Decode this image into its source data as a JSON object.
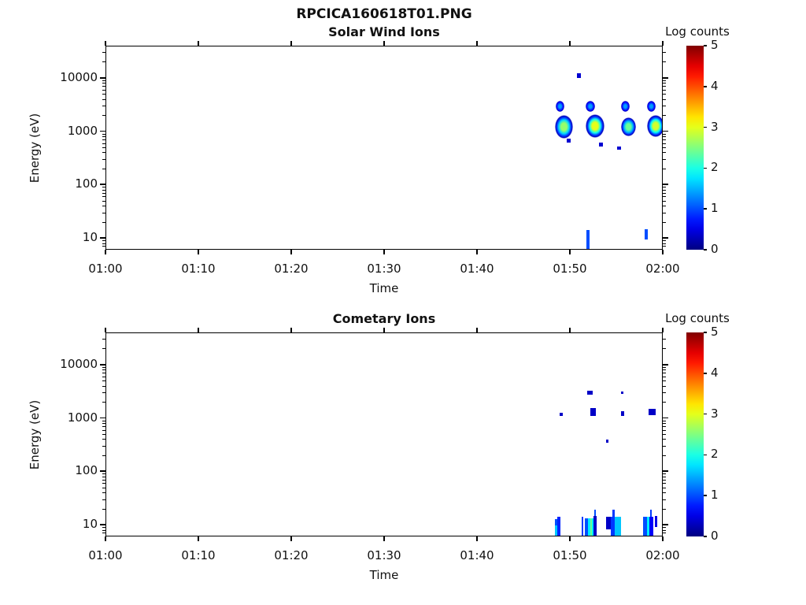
{
  "figure": {
    "title": "RPCICA160618T01.PNG",
    "background": "#ffffff"
  },
  "chart_data": [
    {
      "type": "heatmap",
      "title": "Solar Wind Ions",
      "xlabel": "Time",
      "ylabel": "Energy (eV)",
      "x_range_minutes": [
        60,
        120
      ],
      "y_range_ev": [
        6,
        40000
      ],
      "y_scale": "log",
      "grid": false,
      "x_ticks": [
        {
          "label": "01:00",
          "minutes": 60
        },
        {
          "label": "01:10",
          "minutes": 70
        },
        {
          "label": "01:20",
          "minutes": 80
        },
        {
          "label": "01:30",
          "minutes": 90
        },
        {
          "label": "01:40",
          "minutes": 100
        },
        {
          "label": "01:50",
          "minutes": 110
        },
        {
          "label": "02:00",
          "minutes": 120
        }
      ],
      "y_ticks": [
        {
          "label": "10",
          "ev": 10
        },
        {
          "label": "100",
          "ev": 100
        },
        {
          "label": "1000",
          "ev": 1000
        },
        {
          "label": "10000",
          "ev": 10000
        }
      ],
      "colorbar": {
        "label": "Log counts",
        "range": [
          0,
          5
        ],
        "colormap": "jet",
        "ticks": [
          {
            "label": "0",
            "value": 0
          },
          {
            "label": "1",
            "value": 1
          },
          {
            "label": "2",
            "value": 2
          },
          {
            "label": "3",
            "value": 3
          },
          {
            "label": "4",
            "value": 4
          },
          {
            "label": "5",
            "value": 5
          }
        ]
      },
      "features": [
        {
          "t0": 108.4,
          "t1": 110.3,
          "e0": 725,
          "e1": 2000,
          "c": 2.6,
          "shape": "blob"
        },
        {
          "t0": 111.7,
          "t1": 113.7,
          "e0": 750,
          "e1": 2050,
          "c": 3.0,
          "shape": "blob"
        },
        {
          "t0": 115.5,
          "t1": 117.1,
          "e0": 790,
          "e1": 1800,
          "c": 2.4,
          "shape": "blob"
        },
        {
          "t0": 118.3,
          "t1": 120.2,
          "e0": 780,
          "e1": 1980,
          "c": 2.9,
          "shape": "blob"
        },
        {
          "t0": 108.5,
          "t1": 109.4,
          "e0": 2300,
          "e1": 3700,
          "c": 1.4,
          "shape": "blob"
        },
        {
          "t0": 111.7,
          "t1": 112.7,
          "e0": 2300,
          "e1": 3700,
          "c": 1.4,
          "shape": "blob"
        },
        {
          "t0": 115.5,
          "t1": 116.4,
          "e0": 2300,
          "e1": 3700,
          "c": 1.4,
          "shape": "blob"
        },
        {
          "t0": 118.3,
          "t1": 119.2,
          "e0": 2300,
          "e1": 3700,
          "c": 1.4,
          "shape": "blob"
        },
        {
          "t0": 110.8,
          "t1": 111.2,
          "e0": 9950,
          "e1": 12200,
          "c": 0.4,
          "shape": "rect"
        },
        {
          "t0": 109.7,
          "t1": 110.1,
          "e0": 610,
          "e1": 725,
          "c": 0.4,
          "shape": "rect"
        },
        {
          "t0": 113.1,
          "t1": 113.6,
          "e0": 520,
          "e1": 610,
          "c": 0.4,
          "shape": "rect"
        },
        {
          "t0": 115.1,
          "t1": 115.5,
          "e0": 450,
          "e1": 520,
          "c": 0.4,
          "shape": "rect"
        },
        {
          "t0": 111.8,
          "t1": 112.1,
          "e0": 6,
          "e1": 14,
          "c": 1.0,
          "shape": "rect"
        },
        {
          "t0": 118.05,
          "t1": 118.4,
          "e0": 9.3,
          "e1": 14.5,
          "c": 1.0,
          "shape": "rect"
        }
      ]
    },
    {
      "type": "heatmap",
      "title": "Cometary Ions",
      "xlabel": "Time",
      "ylabel": "Energy (eV)",
      "x_range_minutes": [
        60,
        120
      ],
      "y_range_ev": [
        6,
        40000
      ],
      "y_scale": "log",
      "grid": false,
      "x_ticks": [
        {
          "label": "01:00",
          "minutes": 60
        },
        {
          "label": "01:10",
          "minutes": 70
        },
        {
          "label": "01:20",
          "minutes": 80
        },
        {
          "label": "01:30",
          "minutes": 90
        },
        {
          "label": "01:40",
          "minutes": 100
        },
        {
          "label": "01:50",
          "minutes": 110
        },
        {
          "label": "02:00",
          "minutes": 120
        }
      ],
      "y_ticks": [
        {
          "label": "10",
          "ev": 10
        },
        {
          "label": "100",
          "ev": 100
        },
        {
          "label": "1000",
          "ev": 1000
        },
        {
          "label": "10000",
          "ev": 10000
        }
      ],
      "colorbar": {
        "label": "Log counts",
        "range": [
          0,
          5
        ],
        "colormap": "jet",
        "ticks": [
          {
            "label": "0",
            "value": 0
          },
          {
            "label": "1",
            "value": 1
          },
          {
            "label": "2",
            "value": 2
          },
          {
            "label": "3",
            "value": 3
          },
          {
            "label": "4",
            "value": 4
          },
          {
            "label": "5",
            "value": 5
          }
        ]
      },
      "features": [
        {
          "t0": 108.9,
          "t1": 109.25,
          "e0": 1090,
          "e1": 1250,
          "c": 0.35,
          "shape": "rect"
        },
        {
          "t0": 112.2,
          "t1": 112.8,
          "e0": 1090,
          "e1": 1530,
          "c": 0.35,
          "shape": "rect"
        },
        {
          "t0": 115.5,
          "t1": 115.85,
          "e0": 1090,
          "e1": 1350,
          "c": 0.35,
          "shape": "rect"
        },
        {
          "t0": 118.45,
          "t1": 119.25,
          "e0": 1120,
          "e1": 1500,
          "c": 0.35,
          "shape": "rect"
        },
        {
          "t0": 111.85,
          "t1": 112.45,
          "e0": 2740,
          "e1": 3240,
          "c": 0.35,
          "shape": "rect"
        },
        {
          "t0": 115.5,
          "t1": 115.75,
          "e0": 2780,
          "e1": 3150,
          "c": 0.35,
          "shape": "rect"
        },
        {
          "t0": 113.9,
          "t1": 114.15,
          "e0": 345,
          "e1": 395,
          "c": 0.35,
          "shape": "rect"
        },
        {
          "t0": 108.4,
          "t1": 108.65,
          "e0": 6,
          "e1": 9.5,
          "c": 1.6,
          "shape": "rect"
        },
        {
          "t0": 108.4,
          "t1": 108.65,
          "e0": 9.5,
          "e1": 12.7,
          "c": 1.0,
          "shape": "rect"
        },
        {
          "t0": 108.65,
          "t1": 109.0,
          "e0": 6,
          "e1": 14,
          "c": 0.8,
          "shape": "rect"
        },
        {
          "t0": 111.27,
          "t1": 111.44,
          "e0": 6,
          "e1": 14,
          "c": 0.9,
          "shape": "rect"
        },
        {
          "t0": 111.61,
          "t1": 111.95,
          "e0": 6,
          "e1": 13,
          "c": 1.0,
          "shape": "rect"
        },
        {
          "t0": 111.95,
          "t1": 112.2,
          "e0": 6,
          "e1": 13,
          "c": 1.8,
          "shape": "rect"
        },
        {
          "t0": 112.2,
          "t1": 112.37,
          "e0": 6,
          "e1": 13,
          "c": 2.4,
          "shape": "rect"
        },
        {
          "t0": 112.37,
          "t1": 112.54,
          "e0": 6,
          "e1": 13,
          "c": 1.8,
          "shape": "rect"
        },
        {
          "t0": 112.54,
          "t1": 112.88,
          "e0": 6,
          "e1": 14.5,
          "c": 0.35,
          "shape": "rect"
        },
        {
          "t0": 112.63,
          "t1": 112.8,
          "e0": 14.5,
          "e1": 19,
          "c": 1.0,
          "shape": "rect"
        },
        {
          "t0": 113.9,
          "t1": 114.41,
          "e0": 8.2,
          "e1": 14,
          "c": 0.35,
          "shape": "rect"
        },
        {
          "t0": 114.41,
          "t1": 114.83,
          "e0": 6,
          "e1": 14,
          "c": 0.9,
          "shape": "rect"
        },
        {
          "t0": 114.83,
          "t1": 115.5,
          "e0": 6,
          "e1": 14,
          "c": 1.6,
          "shape": "rect"
        },
        {
          "t0": 114.58,
          "t1": 114.83,
          "e0": 14,
          "e1": 19,
          "c": 0.9,
          "shape": "rect"
        },
        {
          "t0": 117.88,
          "t1": 118.31,
          "e0": 6,
          "e1": 14,
          "c": 1.0,
          "shape": "rect"
        },
        {
          "t0": 118.31,
          "t1": 118.56,
          "e0": 6,
          "e1": 14,
          "c": 1.8,
          "shape": "rect"
        },
        {
          "t0": 118.56,
          "t1": 118.98,
          "e0": 6,
          "e1": 14,
          "c": 0.6,
          "shape": "rect"
        },
        {
          "t0": 118.64,
          "t1": 118.81,
          "e0": 14,
          "e1": 19,
          "c": 0.9,
          "shape": "rect"
        },
        {
          "t0": 119.15,
          "t1": 119.41,
          "e0": 9,
          "e1": 14.5,
          "c": 0.5,
          "shape": "rect"
        }
      ]
    }
  ]
}
